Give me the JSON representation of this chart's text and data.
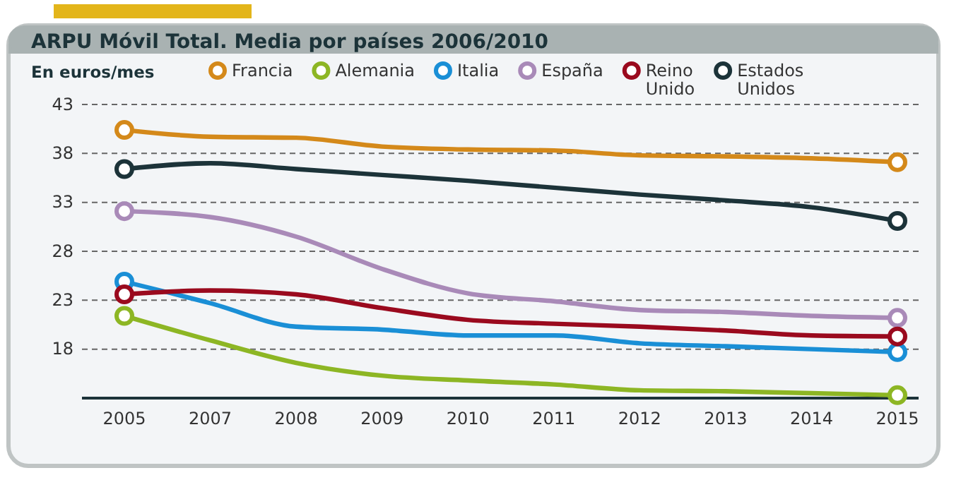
{
  "chart_data": {
    "type": "line",
    "title": "ARPU Móvil Total. Media por países 2006/2010",
    "ylabel": "En euros/mes",
    "categories": [
      "2005",
      "2007",
      "2008",
      "2009",
      "2010",
      "2011",
      "2012",
      "2013",
      "2014",
      "2015"
    ],
    "ylim": [
      13,
      43
    ],
    "yticks": [
      18,
      23,
      28,
      33,
      38,
      43
    ],
    "grid": "y",
    "legend": "top",
    "line_style": "solid",
    "series": [
      {
        "name": "Francia",
        "color": "#d4891a",
        "values": [
          40.4,
          39.7,
          39.6,
          38.7,
          38.4,
          38.3,
          37.8,
          37.7,
          37.5,
          37.1
        ]
      },
      {
        "name": "Alemania",
        "color": "#8db624",
        "values": [
          21.4,
          18.9,
          16.6,
          15.3,
          14.8,
          14.4,
          13.8,
          13.7,
          13.5,
          13.3
        ]
      },
      {
        "name": "Italia",
        "color": "#1a8fd6",
        "values": [
          24.9,
          22.7,
          20.3,
          20.0,
          19.4,
          19.4,
          18.6,
          18.3,
          18.0,
          17.7
        ]
      },
      {
        "name": "España",
        "color": "#a98ab8",
        "values": [
          32.1,
          31.5,
          29.5,
          26.2,
          23.7,
          22.9,
          22.0,
          21.8,
          21.4,
          21.2
        ]
      },
      {
        "name": "Reino Unido",
        "color": "#9a0a1e",
        "values": [
          23.6,
          24.0,
          23.6,
          22.2,
          21.0,
          20.6,
          20.3,
          19.9,
          19.4,
          19.3
        ]
      },
      {
        "name": "Estados Unidos",
        "color": "#1c3339",
        "values": [
          36.4,
          37.0,
          36.4,
          35.8,
          35.2,
          34.5,
          33.8,
          33.2,
          32.5,
          31.1
        ]
      }
    ]
  }
}
